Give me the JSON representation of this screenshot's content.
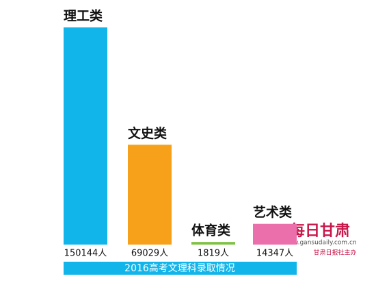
{
  "chart_data": {
    "type": "bar",
    "title": "2016高考文理科录取情况",
    "categories": [
      "理工类",
      "文史类",
      "体育类",
      "艺术类"
    ],
    "values": [
      150144,
      69029,
      1819,
      14347
    ],
    "value_labels": [
      "150144人",
      "69029人",
      "1819人",
      "14347人"
    ],
    "colors": [
      "#12b5ea",
      "#f7a11a",
      "#7dc242",
      "#ea6faa"
    ]
  },
  "watermark": {
    "logo": "每日甘肃",
    "url": "www.gansudaily.com.cn",
    "sponsor": "甘肃日报社主办"
  }
}
